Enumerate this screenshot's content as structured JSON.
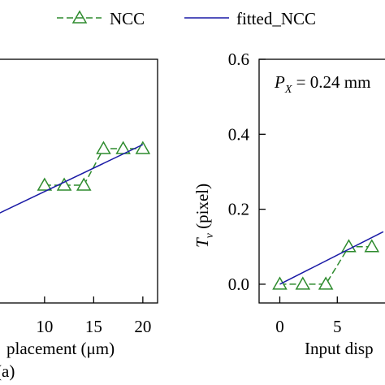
{
  "legend": {
    "position": "top",
    "entries": [
      {
        "label": "NCC",
        "color": "#2e8b2e",
        "marker": "triangle-open",
        "line": "dashed"
      },
      {
        "label": "fitted_NCC",
        "color": "#1a1aa6",
        "marker": "none",
        "line": "solid"
      }
    ]
  },
  "chart_data": [
    {
      "type": "line",
      "panel_label": "(a)",
      "xlabel": "placement (μm)",
      "ylabel": "",
      "x_ticks": [
        "10",
        "15",
        "20"
      ],
      "xlim": [
        5.3,
        21.5
      ],
      "ylim": [
        -0.05,
        0.55
      ],
      "series": [
        {
          "name": "NCC",
          "color": "#2e8b2e",
          "x": [
            10,
            12,
            14,
            16,
            18,
            20
          ],
          "y": [
            0.24,
            0.24,
            0.24,
            0.33,
            0.33,
            0.33
          ]
        },
        {
          "name": "fitted_NCC",
          "color": "#1a1aa6",
          "x": [
            5.3,
            20
          ],
          "y": [
            0.17,
            0.34
          ]
        }
      ]
    },
    {
      "type": "line",
      "panel_label": "",
      "xlabel": "Input disp",
      "ylabel": "T_v (pixel)",
      "y_ticks": [
        "0.0",
        "0.2",
        "0.4",
        "0.6"
      ],
      "x_ticks": [
        "0",
        "5"
      ],
      "xlim": [
        -1.8,
        9.5
      ],
      "ylim": [
        -0.05,
        0.6
      ],
      "annotation": "P_X = 0.24 mm",
      "series": [
        {
          "name": "NCC",
          "color": "#2e8b2e",
          "x": [
            0,
            2,
            4,
            6,
            8
          ],
          "y": [
            0.0,
            0.0,
            0.0,
            0.1,
            0.1
          ]
        },
        {
          "name": "fitted_NCC",
          "color": "#1a1aa6",
          "x": [
            0,
            9
          ],
          "y": [
            0.0,
            0.14
          ]
        }
      ]
    }
  ]
}
